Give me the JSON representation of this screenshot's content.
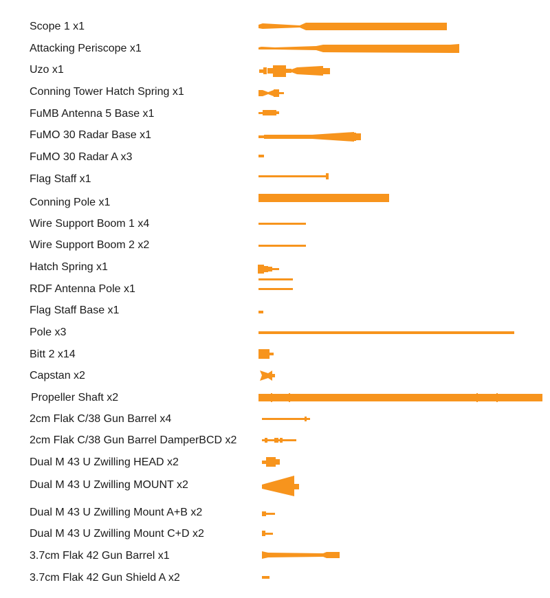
{
  "colors": {
    "part": "#f7941d",
    "text": "#1a1a1a",
    "background": "#ffffff"
  },
  "parts": [
    {
      "label": "Scope 1 x1"
    },
    {
      "label": "Attacking Periscope x1"
    },
    {
      "label": "Uzo x1"
    },
    {
      "label": "Conning Tower Hatch Spring x1"
    },
    {
      "label": "FuMB Antenna 5 Base x1"
    },
    {
      "label": "FuMO 30 Radar Base x1"
    },
    {
      "label": "FuMO 30 Radar A x3"
    },
    {
      "label": "Flag Staff x1"
    },
    {
      "label": "Conning Pole x1"
    },
    {
      "label": "Wire Support Boom 1 x4"
    },
    {
      "label": "Wire Support Boom 2 x2"
    },
    {
      "label": "Hatch Spring x1"
    },
    {
      "label": "RDF Antenna Pole x1"
    },
    {
      "label": "Flag Staff Base x1"
    },
    {
      "label": "Pole x3"
    },
    {
      "label": "Bitt 2 x14"
    },
    {
      "label": "Capstan x2"
    },
    {
      "label": "Propeller Shaft x2"
    },
    {
      "label": "2cm Flak C/38 Gun Barrel x4"
    },
    {
      "label": "2cm Flak C/38 Gun Barrel DamperBCD x2"
    },
    {
      "label": "Dual M 43 U Zwilling HEAD x2"
    },
    {
      "label": "Dual M 43 U Zwilling MOUNT x2"
    },
    {
      "label": "Dual M 43 U Zwilling Mount A+B x2"
    },
    {
      "label": "Dual M 43 U Zwilling Mount C+D x2"
    },
    {
      "label": "3.7cm Flak 42 Gun Barrel x1"
    },
    {
      "label": "3.7cm Flak 42 Gun Shield A x2"
    }
  ]
}
